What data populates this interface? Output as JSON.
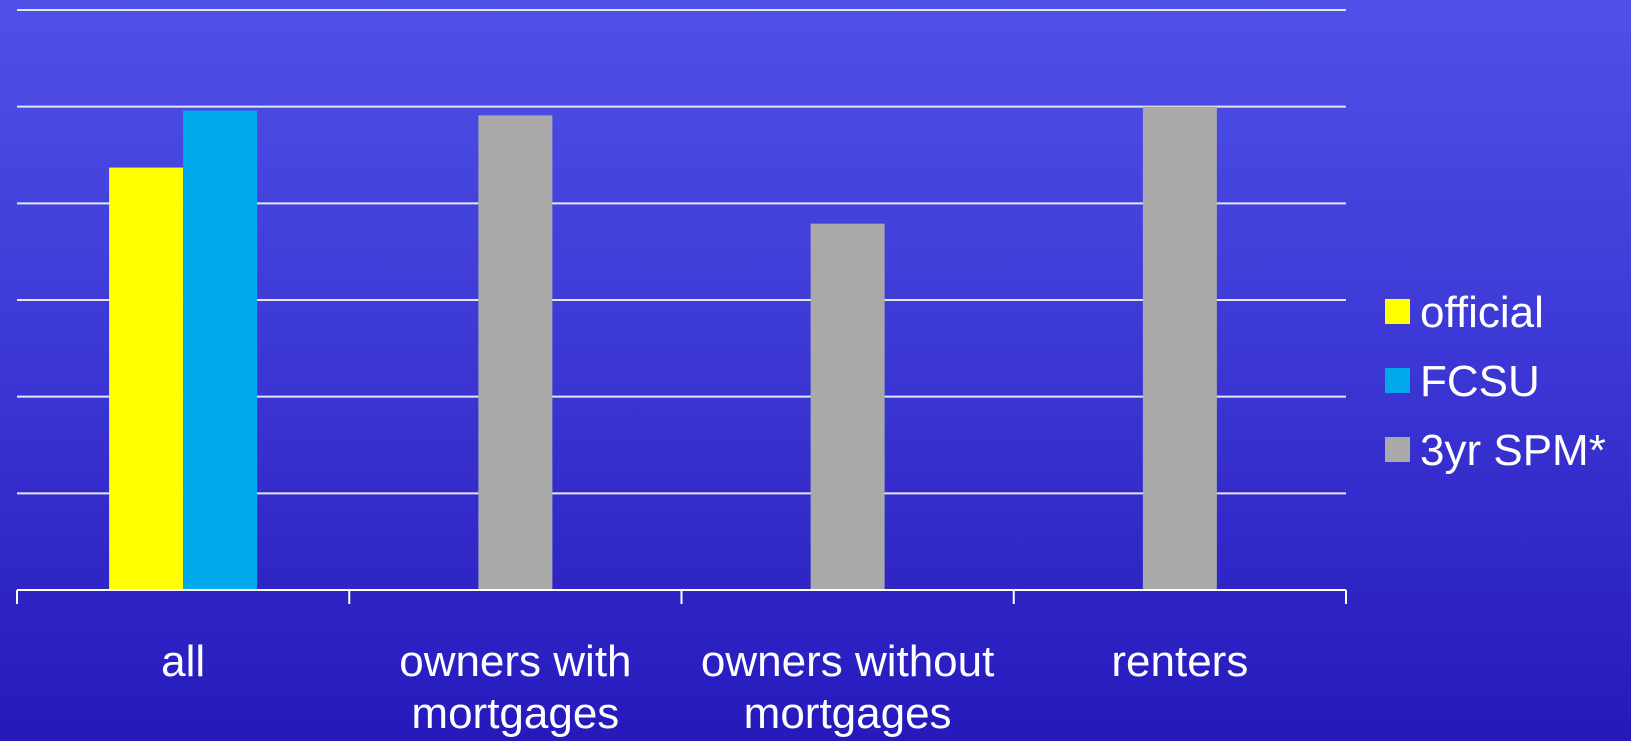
{
  "chart_data": {
    "type": "bar",
    "categories": [
      [
        "all"
      ],
      [
        "owners with",
        "mortgages"
      ],
      [
        "owners without",
        "mortgages"
      ],
      [
        "renters"
      ]
    ],
    "series": [
      {
        "name": "official",
        "color": "#ffff00",
        "values": [
          4.37,
          null,
          null,
          null
        ]
      },
      {
        "name": "FCSU",
        "color": "#00a9ec",
        "values": [
          4.96,
          null,
          null,
          null
        ]
      },
      {
        "name": "3yr SPM*",
        "color": "#a9a9a9",
        "values": [
          null,
          4.91,
          3.79,
          5.0
        ]
      }
    ],
    "ylim": [
      0,
      6
    ],
    "gridlines": [
      1,
      2,
      3,
      4,
      5,
      6
    ],
    "grid": true,
    "legend": "right",
    "colors": {
      "gridline": "#e6e6f0",
      "axis": "#ffffff",
      "text": "#ffffff"
    }
  }
}
